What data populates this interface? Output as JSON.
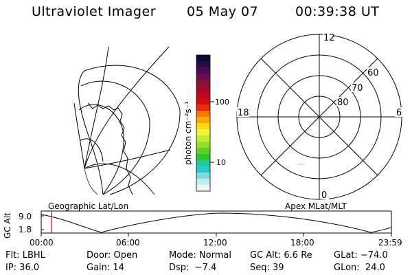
{
  "header": {
    "instrument": "Ultraviolet Imager",
    "date": "05 May 07",
    "time": "00:39:38 UT"
  },
  "colorbar": {
    "unit_label": "photon cm⁻²s⁻¹",
    "ticks": [
      "100",
      "10"
    ],
    "colors": [
      "#0a0830",
      "#2a0b45",
      "#4a0a5c",
      "#6a0d53",
      "#880f38",
      "#a20b26",
      "#bd0a1c",
      "#d40a14",
      "#ea2a0b",
      "#f47a05",
      "#f8ab04",
      "#fbd60f",
      "#f2f23a",
      "#c7ec35",
      "#95de2b",
      "#5fcf20",
      "#29c52b",
      "#22c79a",
      "#29c8cc",
      "#7fd9e2",
      "#c4ecf1",
      "#eef7f8"
    ]
  },
  "polar_plot": {
    "mlt_labels": {
      "top": "12",
      "right": "6",
      "bottom": "0",
      "left": "18"
    },
    "lat_labels": [
      "60",
      "70",
      "80"
    ]
  },
  "map_labels": {
    "left": "Geographic Lat/Lon",
    "right": "Apex MLat/MLT"
  },
  "altitude_strip": {
    "axis_label": "GC Alt",
    "y_ticks": [
      "9.0",
      "1.8"
    ],
    "x_ticks": [
      "00:00",
      "06:00",
      "12:00",
      "18:00",
      "23:59"
    ],
    "marker_color": "#e0151b"
  },
  "info": {
    "row1": [
      "Flt: LBHL",
      "Door: Open",
      "Mode: Normal",
      "GC Alt: 6.6 Re",
      "GLat: −74.0"
    ],
    "row2": [
      "IP: 36.0",
      "Gain: 14",
      "Dsp:  −7.4",
      "Seq: 39",
      "GLon:  24.0"
    ]
  }
}
